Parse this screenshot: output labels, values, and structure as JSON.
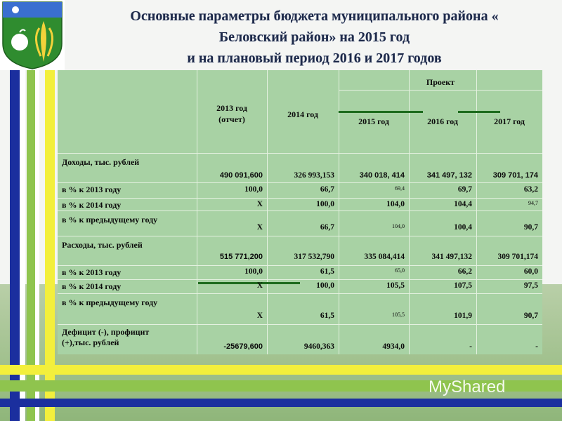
{
  "title": {
    "line1": "Основные параметры бюджета муниципального района «",
    "line2": "Беловский район» на 2015 год",
    "line3": "и на плановый период 2016 и 2017 годов"
  },
  "table": {
    "headers": {
      "col_2013": "2013 год\n(отчет)",
      "col_2014": "2014 год",
      "project": "Проект",
      "col_2015": "2015 год",
      "col_2016": "2016 год",
      "col_2017": "2017 год"
    },
    "rows": [
      {
        "label": "Доходы, тыс. рублей",
        "values": [
          "490 091,600",
          "326 993,153",
          "340 018, 414",
          "341 497, 132",
          "309 701, 174"
        ]
      },
      {
        "label": "в % к 2013 году",
        "values": [
          "100,0",
          "66,7",
          "69,4",
          "69,7",
          "63,2"
        ]
      },
      {
        "label": "в % к 2014 году",
        "values": [
          "Х",
          "100,0",
          "104,0",
          "104,4",
          "94,7"
        ]
      },
      {
        "label": "в % к предыдущему году",
        "values": [
          "Х",
          "66,7",
          "104,0",
          "100,4",
          "90,7"
        ]
      },
      {
        "label": "Расходы, тыс. рублей",
        "values": [
          "515 771,200",
          "317 532,790",
          "335 084,414",
          "341 497,132",
          "309 701,174"
        ]
      },
      {
        "label": "в % к 2013 году",
        "values": [
          "100,0",
          "61,5",
          "65,0",
          "66,2",
          "60,0"
        ]
      },
      {
        "label": "в % к 2014 году",
        "values": [
          "Х",
          "100,0",
          "105,5",
          "107,5",
          "97,5"
        ]
      },
      {
        "label": "в % к предыдущему году",
        "values": [
          "Х",
          "61,5",
          "105,5",
          "101,9",
          "90,7"
        ]
      },
      {
        "label": "Дефицит (-), профицит\n(+),тыс. рублей",
        "values": [
          "-25679,600",
          "9460,363",
          "4934,0",
          "-",
          "-"
        ]
      }
    ]
  },
  "watermark": "MyShared",
  "colors": {
    "table_bg": "#a8d2a4",
    "title": "#1e2a4a",
    "stripe_blue": "#1b2f9e",
    "stripe_yellow": "#f3ef3c",
    "stripe_green": "#8fc44e"
  }
}
